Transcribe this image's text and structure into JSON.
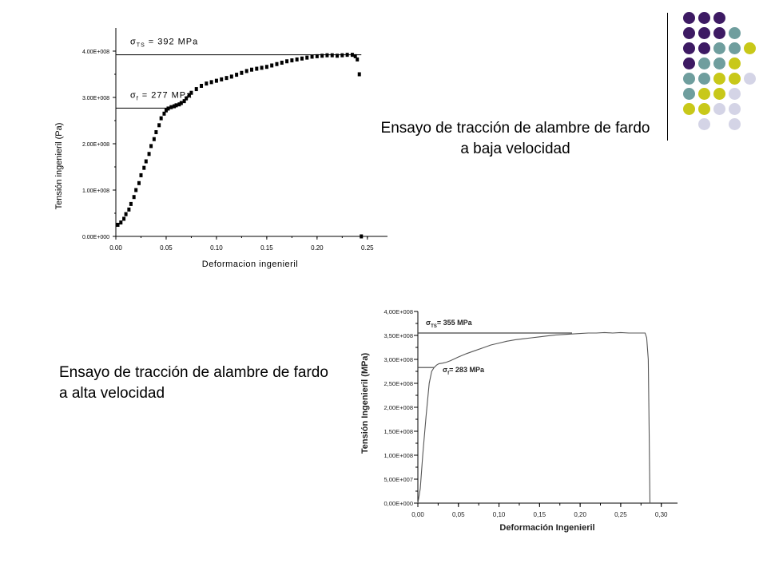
{
  "slide": {
    "caption_low": "Ensayo de tracción de alambre de fardo a baja velocidad",
    "caption_high": "Ensayo de tracción de alambre de fardo a alta velocidad"
  },
  "palette": {
    "colors": [
      "#3d1a63",
      "#6f9e9e",
      "#c8c819",
      "#d4d4e6"
    ],
    "dots": [
      [
        "#3d1a63",
        "#3d1a63",
        "#3d1a63",
        null,
        null
      ],
      [
        "#3d1a63",
        "#3d1a63",
        "#3d1a63",
        "#6f9e9e",
        null
      ],
      [
        "#3d1a63",
        "#3d1a63",
        "#6f9e9e",
        "#6f9e9e",
        "#c8c819"
      ],
      [
        "#3d1a63",
        "#6f9e9e",
        "#6f9e9e",
        "#c8c819",
        null
      ],
      [
        "#6f9e9e",
        "#6f9e9e",
        "#c8c819",
        "#c8c819",
        "#d4d4e6"
      ],
      [
        "#6f9e9e",
        "#c8c819",
        "#c8c819",
        "#d4d4e6",
        null
      ],
      [
        "#c8c819",
        "#c8c819",
        "#d4d4e6",
        "#d4d4e6",
        null
      ],
      [
        null,
        "#d4d4e6",
        null,
        "#d4d4e6",
        null
      ]
    ]
  },
  "chart_data": [
    {
      "type": "scatter",
      "xlabel": "Deformacion ingenieril",
      "ylabel": "Tensión ingenieril (Pa)",
      "xlim": [
        0,
        0.27
      ],
      "ylim": [
        0,
        450000000
      ],
      "x_ticks": [
        0,
        0.05,
        0.1,
        0.15,
        0.2,
        0.25
      ],
      "x_tick_labels": [
        "0.00",
        "0.05",
        "0.10",
        "0.15",
        "0.20",
        "0.25"
      ],
      "y_ticks": [
        0,
        100000000,
        200000000,
        300000000,
        400000000
      ],
      "y_tick_labels": [
        "0.00E+000",
        "1.00E+008",
        "2.00E+008",
        "3.00E+008",
        "4.00E+008"
      ],
      "annotations": [
        {
          "label_symbol": "σ",
          "label_sub": "TS",
          "label_text": "= 392  MPa",
          "y": 392000000
        },
        {
          "label_symbol": "σ",
          "label_sub": "f",
          "label_text": "= 277  MPa",
          "y": 277000000
        }
      ],
      "series": [
        {
          "x": [
            0.002,
            0.005,
            0.008,
            0.01,
            0.013,
            0.015,
            0.018,
            0.02,
            0.023,
            0.025,
            0.028,
            0.03,
            0.033,
            0.035,
            0.038,
            0.04,
            0.043,
            0.045,
            0.048,
            0.05,
            0.052,
            0.055,
            0.058,
            0.06,
            0.063,
            0.065,
            0.068,
            0.07,
            0.073,
            0.075,
            0.08,
            0.085,
            0.09,
            0.095,
            0.1,
            0.105,
            0.11,
            0.115,
            0.12,
            0.125,
            0.13,
            0.135,
            0.14,
            0.145,
            0.15,
            0.155,
            0.16,
            0.165,
            0.17,
            0.175,
            0.18,
            0.185,
            0.19,
            0.195,
            0.2,
            0.205,
            0.21,
            0.215,
            0.22,
            0.225,
            0.23,
            0.235,
            0.238,
            0.24,
            0.242,
            0.244
          ],
          "y": [
            25000000,
            30000000,
            38000000,
            48000000,
            58000000,
            70000000,
            85000000,
            100000000,
            115000000,
            132000000,
            148000000,
            162000000,
            178000000,
            195000000,
            210000000,
            225000000,
            240000000,
            255000000,
            265000000,
            272000000,
            276000000,
            279000000,
            281000000,
            283000000,
            285000000,
            288000000,
            292000000,
            298000000,
            305000000,
            310000000,
            318000000,
            325000000,
            330000000,
            333000000,
            336000000,
            339000000,
            342000000,
            345000000,
            349000000,
            353000000,
            357000000,
            360000000,
            362000000,
            364000000,
            366000000,
            369000000,
            372000000,
            375000000,
            378000000,
            380000000,
            382000000,
            384000000,
            386000000,
            388000000,
            389000000,
            390000000,
            391000000,
            391000000,
            390000000,
            391000000,
            392000000,
            392000000,
            389000000,
            382000000,
            350000000,
            0
          ]
        }
      ]
    },
    {
      "type": "line",
      "xlabel": "Deformación Ingenieril",
      "ylabel": "Tensión Ingenieril (MPa)",
      "xlim": [
        0,
        0.32
      ],
      "ylim": [
        0,
        400000000
      ],
      "x_ticks": [
        0,
        0.05,
        0.1,
        0.15,
        0.2,
        0.25,
        0.3
      ],
      "x_tick_labels": [
        "0,00",
        "0,05",
        "0,10",
        "0,15",
        "0,20",
        "0,25",
        "0,30"
      ],
      "y_ticks": [
        0,
        50000000,
        100000000,
        150000000,
        200000000,
        250000000,
        300000000,
        350000000,
        400000000
      ],
      "y_tick_labels": [
        "0,00E+000",
        "5,00E+007",
        "1,00E+008",
        "1,50E+008",
        "2,00E+008",
        "2,50E+008",
        "3,00E+008",
        "3,50E+008",
        "4,00E+008"
      ],
      "annotations": [
        {
          "label_symbol": "σ",
          "label_sub": "TS",
          "label_text": "= 355  MPa",
          "y": 355000000
        },
        {
          "label_symbol": "σ",
          "label_sub": "f",
          "label_text": "= 283  MPa",
          "y": 283000000
        }
      ],
      "series": [
        {
          "x": [
            0,
            0.003,
            0.006,
            0.01,
            0.014,
            0.017,
            0.02,
            0.023,
            0.026,
            0.03,
            0.035,
            0.04,
            0.05,
            0.06,
            0.07,
            0.08,
            0.09,
            0.1,
            0.11,
            0.12,
            0.13,
            0.14,
            0.15,
            0.16,
            0.17,
            0.18,
            0.19,
            0.2,
            0.21,
            0.22,
            0.23,
            0.24,
            0.25,
            0.26,
            0.27,
            0.28,
            0.282,
            0.284,
            0.285,
            0.286
          ],
          "y": [
            0,
            30000000,
            100000000,
            180000000,
            250000000,
            275000000,
            283000000,
            288000000,
            291000000,
            292000000,
            294000000,
            297000000,
            305000000,
            312000000,
            318000000,
            324000000,
            330000000,
            334000000,
            338000000,
            341000000,
            343000000,
            345000000,
            347000000,
            349000000,
            351000000,
            352000000,
            353000000,
            354000000,
            355000000,
            355000000,
            356000000,
            355000000,
            356000000,
            355000000,
            355000000,
            355000000,
            345000000,
            300000000,
            150000000,
            0
          ]
        }
      ]
    }
  ]
}
